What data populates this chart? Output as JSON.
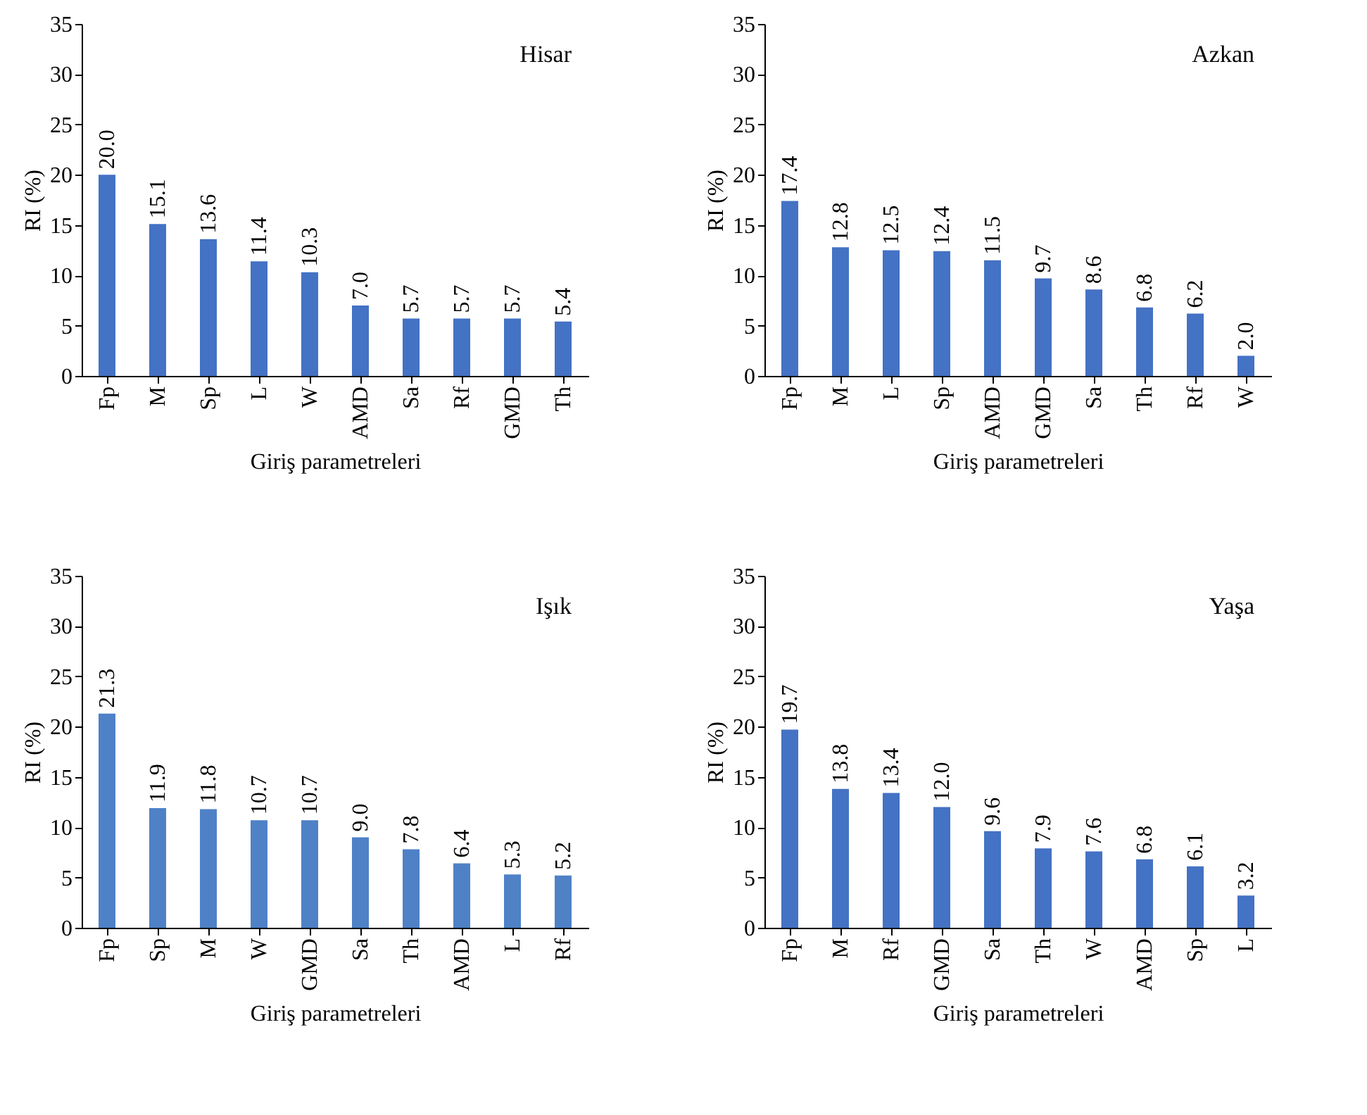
{
  "chart_data": [
    {
      "type": "bar",
      "title": "Hisar",
      "xlabel": "Giriş parametreleri",
      "ylabel": "RI (%)",
      "categories": [
        "Fp",
        "M",
        "Sp",
        "L",
        "W",
        "AMD",
        "Sa",
        "Rf",
        "GMD",
        "Th"
      ],
      "values": [
        20.0,
        15.1,
        13.6,
        11.4,
        10.3,
        7.0,
        5.7,
        5.7,
        5.7,
        5.4
      ],
      "value_labels": [
        "20.0",
        "15.1",
        "13.6",
        "11.4",
        "10.3",
        "7.0",
        "5.7",
        "5.7",
        "5.7",
        "5.4"
      ],
      "color": "#4472c4",
      "ylim": [
        0,
        35
      ],
      "yticks": [
        0,
        5,
        10,
        15,
        20,
        25,
        30,
        35
      ]
    },
    {
      "type": "bar",
      "title": "Azkan",
      "xlabel": "Giriş parametreleri",
      "ylabel": "RI (%)",
      "categories": [
        "Fp",
        "M",
        "L",
        "Sp",
        "AMD",
        "GMD",
        "Sa",
        "Th",
        "Rf",
        "W"
      ],
      "values": [
        17.4,
        12.8,
        12.5,
        12.4,
        11.5,
        9.7,
        8.6,
        6.8,
        6.2,
        2.0
      ],
      "value_labels": [
        "17.4",
        "12.8",
        "12.5",
        "12.4",
        "11.5",
        "9.7",
        "8.6",
        "6.8",
        "6.2",
        "2.0"
      ],
      "color": "#4472c4",
      "ylim": [
        0,
        35
      ],
      "yticks": [
        0,
        5,
        10,
        15,
        20,
        25,
        30,
        35
      ]
    },
    {
      "type": "bar",
      "title": "Işık",
      "xlabel": "Giriş parametreleri",
      "ylabel": "RI (%)",
      "categories": [
        "Fp",
        "Sp",
        "M",
        "W",
        "GMD",
        "Sa",
        "Th",
        "AMD",
        "L",
        "Rf"
      ],
      "values": [
        21.3,
        11.9,
        11.8,
        10.7,
        10.7,
        9.0,
        7.8,
        6.4,
        5.3,
        5.2
      ],
      "value_labels": [
        "21.3",
        "11.9",
        "11.8",
        "10.7",
        "10.7",
        "9.0",
        "7.8",
        "6.4",
        "5.3",
        "5.2"
      ],
      "color": "#4f81c7",
      "ylim": [
        0,
        35
      ],
      "yticks": [
        0,
        5,
        10,
        15,
        20,
        25,
        30,
        35
      ]
    },
    {
      "type": "bar",
      "title": "Yaşa",
      "xlabel": "Giriş parametreleri",
      "ylabel": "RI (%)",
      "categories": [
        "Fp",
        "M",
        "Rf",
        "GMD",
        "Sa",
        "Th",
        "W",
        "AMD",
        "Sp",
        "L"
      ],
      "values": [
        19.7,
        13.8,
        13.4,
        12.0,
        9.6,
        7.9,
        7.6,
        6.8,
        6.1,
        3.2
      ],
      "value_labels": [
        "19.7",
        "13.8",
        "13.4",
        "12.0",
        "9.6",
        "7.9",
        "7.6",
        "6.8",
        "6.1",
        "3.2"
      ],
      "color": "#4472c4",
      "ylim": [
        0,
        35
      ],
      "yticks": [
        0,
        5,
        10,
        15,
        20,
        25,
        30,
        35
      ]
    }
  ]
}
